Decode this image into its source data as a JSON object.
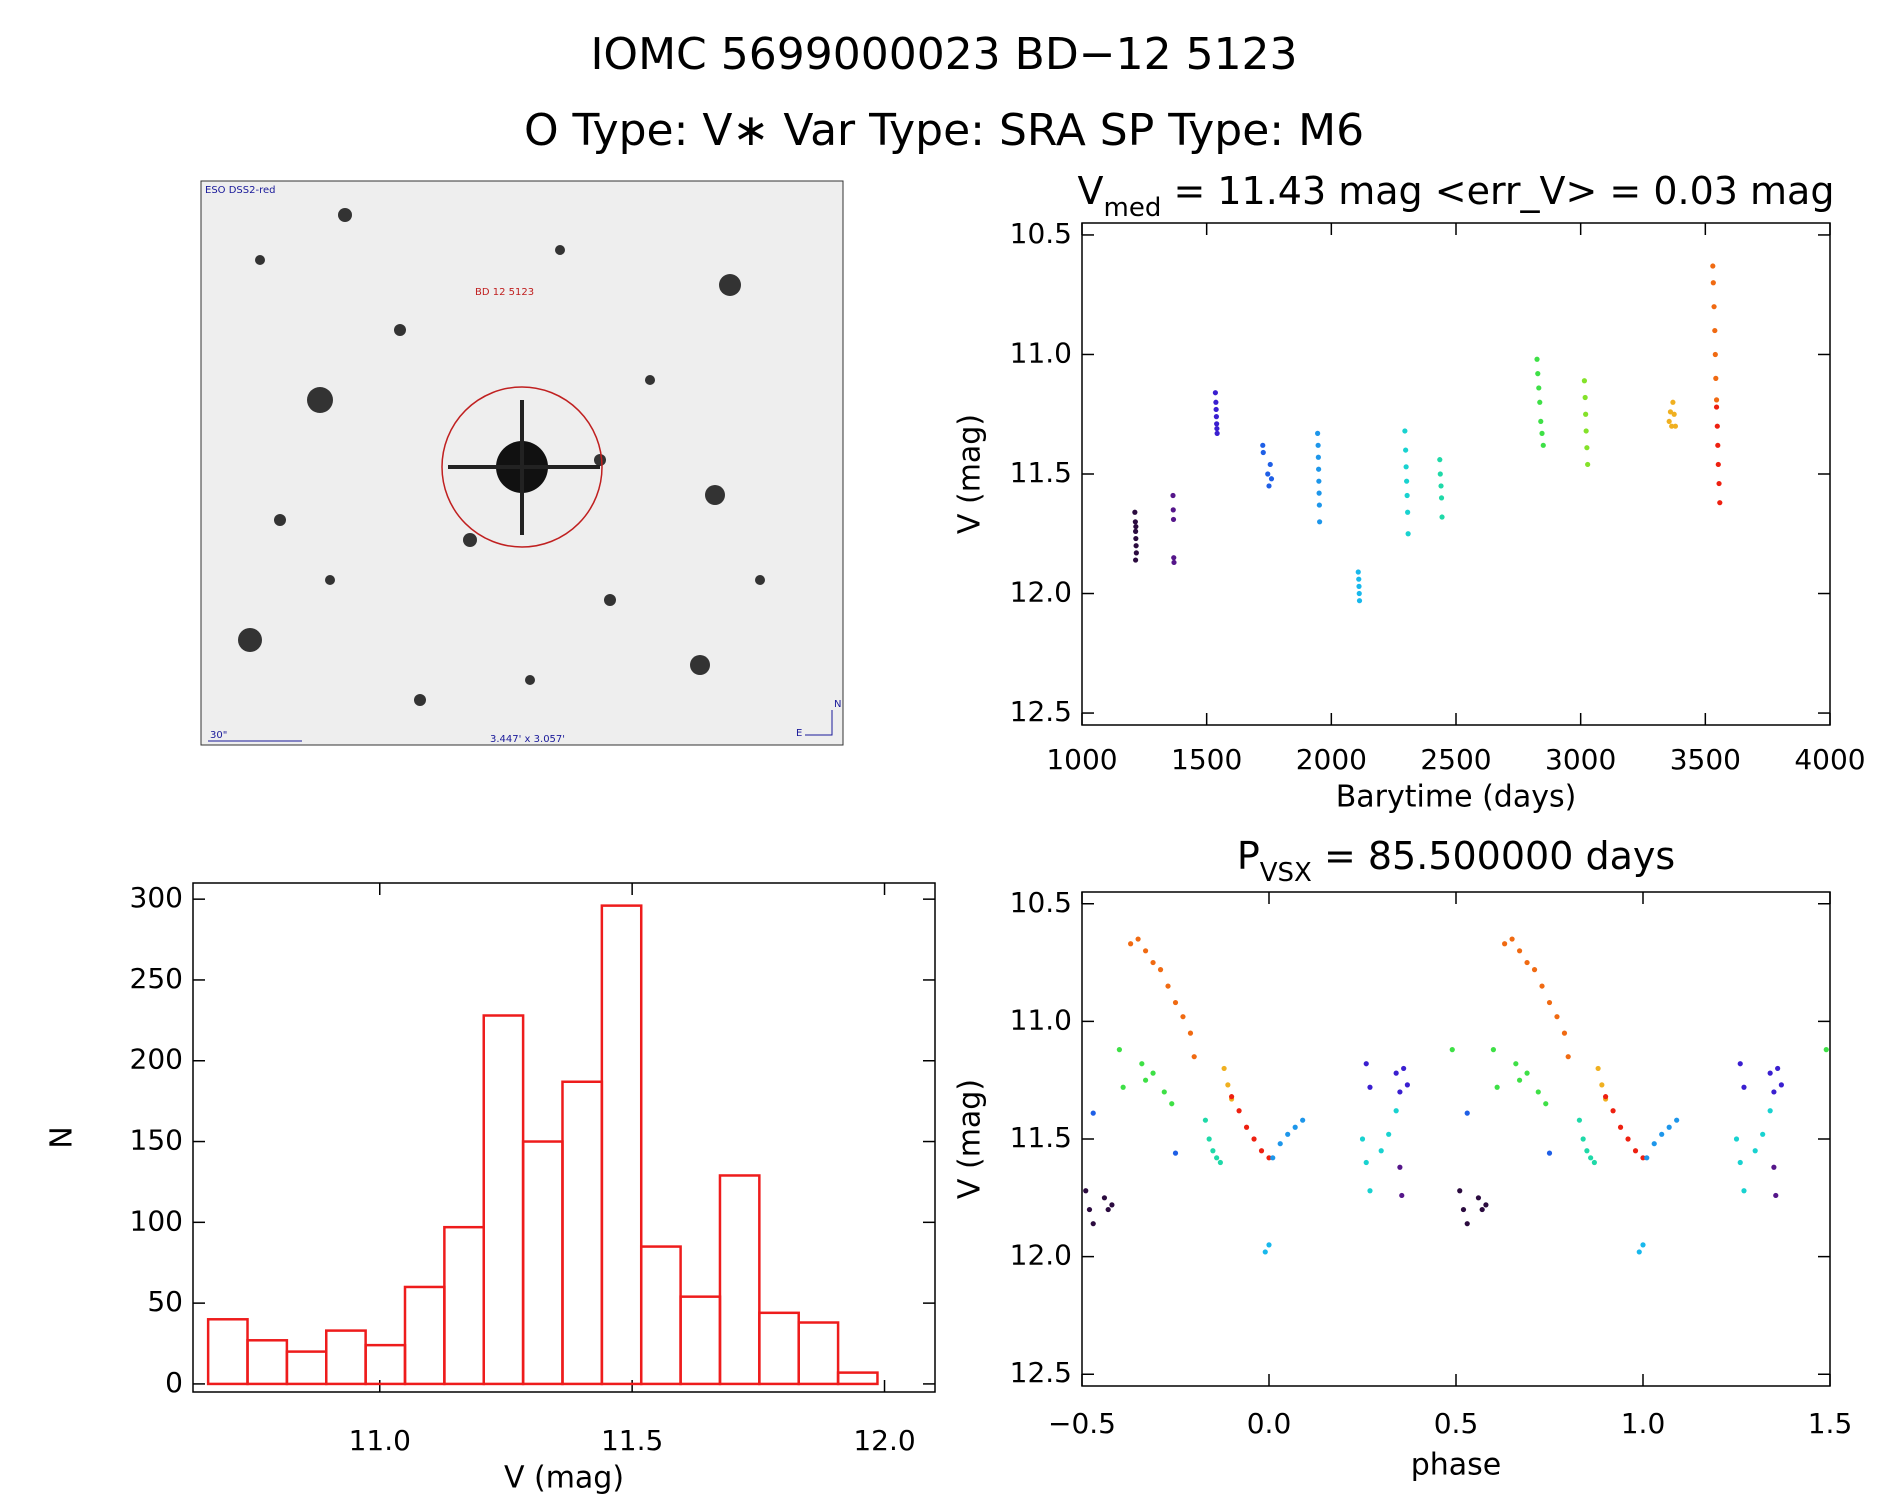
{
  "header": {
    "title": "IOMC 5699000023   BD−12  5123",
    "subtitle": "O Type: V∗  Var Type: SRA  SP Type: M6"
  },
  "image": {
    "survey": "ESO DSS2-red",
    "target": "BD 12 5123",
    "scale": "30\"",
    "field": "3.447' x 3.057'",
    "north": "N",
    "east": "E"
  },
  "chart_data": [
    {
      "type": "scatter",
      "title": [
        "V",
        "med",
        " = 11.43 mag <err_V> = 0.03 mag"
      ],
      "x_label": "Barytime (days)",
      "y_label": "V (mag)",
      "xlim": [
        1000,
        4000
      ],
      "ylim": [
        12.55,
        10.45
      ],
      "xticks": [
        1000,
        1500,
        2000,
        2500,
        3000,
        3500,
        4000
      ],
      "yticks": [
        10.5,
        {
          "value": 11,
          "label": "11.0"
        },
        11.5,
        {
          "value": 12,
          "label": "12.0"
        },
        12.5
      ],
      "series": [
        {
          "color": "#2b0b3f",
          "x": [
            1212,
            1214,
            1215,
            1216,
            1217,
            1218,
            1215,
            1216
          ],
          "values": [
            11.66,
            11.7,
            11.74,
            11.77,
            11.8,
            11.83,
            11.86,
            11.72
          ]
        },
        {
          "color": "#55168a",
          "x": [
            1365,
            1366,
            1367,
            1368,
            1369
          ],
          "values": [
            11.59,
            11.65,
            11.69,
            11.85,
            11.87
          ]
        },
        {
          "color": "#3a1fd0",
          "x": [
            1535,
            1537,
            1538,
            1539,
            1540,
            1541,
            1542
          ],
          "values": [
            11.16,
            11.2,
            11.23,
            11.26,
            11.29,
            11.31,
            11.33
          ]
        },
        {
          "color": "#1f5fe6",
          "x": [
            1725,
            1727,
            1745,
            1750,
            1755,
            1760
          ],
          "values": [
            11.38,
            11.41,
            11.5,
            11.55,
            11.46,
            11.52
          ]
        },
        {
          "color": "#1d96ea",
          "x": [
            1945,
            1947,
            1948,
            1949,
            1950,
            1951,
            1952,
            1953
          ],
          "values": [
            11.33,
            11.38,
            11.43,
            11.48,
            11.53,
            11.58,
            11.63,
            11.7
          ]
        },
        {
          "color": "#18b8ec",
          "x": [
            2108,
            2110,
            2111,
            2112,
            2113
          ],
          "values": [
            11.91,
            11.94,
            11.97,
            12.0,
            12.03
          ]
        },
        {
          "color": "#19d2d0",
          "x": [
            2295,
            2298,
            2300,
            2302,
            2304,
            2306,
            2308
          ],
          "values": [
            11.32,
            11.4,
            11.47,
            11.53,
            11.59,
            11.66,
            11.75
          ]
        },
        {
          "color": "#1fd9a8",
          "x": [
            2435,
            2437,
            2440,
            2442,
            2444
          ],
          "values": [
            11.44,
            11.5,
            11.55,
            11.6,
            11.68
          ]
        },
        {
          "color": "#3ee046",
          "x": [
            2825,
            2828,
            2832,
            2836,
            2840,
            2845,
            2850
          ],
          "values": [
            11.02,
            11.08,
            11.14,
            11.2,
            11.28,
            11.33,
            11.38
          ]
        },
        {
          "color": "#84e22a",
          "x": [
            3015,
            3018,
            3020,
            3022,
            3025,
            3028
          ],
          "values": [
            11.11,
            11.18,
            11.25,
            11.32,
            11.39,
            11.46
          ]
        },
        {
          "color": "#f0b020",
          "x": [
            3355,
            3360,
            3365,
            3370,
            3375,
            3380
          ],
          "values": [
            11.28,
            11.24,
            11.3,
            11.2,
            11.25,
            11.3
          ]
        },
        {
          "color": "#f06a12",
          "x": [
            3530,
            3532,
            3535,
            3538,
            3540,
            3542,
            3545
          ],
          "values": [
            10.63,
            10.7,
            10.8,
            10.9,
            11.0,
            11.1,
            11.19
          ]
        },
        {
          "color": "#ee2010",
          "x": [
            3545,
            3548,
            3550,
            3552,
            3555,
            3558
          ],
          "values": [
            11.22,
            11.3,
            11.38,
            11.46,
            11.54,
            11.62
          ]
        }
      ]
    },
    {
      "type": "histogram",
      "x_label": "V (mag)",
      "y_label": "N",
      "color": "#ee1c1c",
      "xlim": [
        10.63,
        12.1
      ],
      "ylim": [
        -5,
        310
      ],
      "xticks": [
        {
          "value": 11,
          "label": "11.0"
        },
        11.5,
        {
          "value": 12,
          "label": "12.0"
        }
      ],
      "yticks": [
        0,
        50,
        100,
        150,
        200,
        250,
        300
      ],
      "bins": [
        10.66,
        10.738,
        10.816,
        10.894,
        10.972,
        11.05,
        11.128,
        11.206,
        11.284,
        11.362,
        11.44,
        11.518,
        11.596,
        11.674,
        11.752,
        11.83,
        11.908,
        11.986
      ],
      "values": [
        40,
        27,
        20,
        33,
        24,
        60,
        97,
        228,
        150,
        187,
        296,
        85,
        54,
        129,
        44,
        38,
        7
      ]
    },
    {
      "type": "scatter",
      "title": [
        "P",
        "VSX",
        " = 85.500000 days"
      ],
      "x_label": "phase",
      "y_label": "V (mag)",
      "xlim": [
        -0.5,
        1.5
      ],
      "ylim": [
        12.55,
        10.45
      ],
      "xticks": [
        {
          "value": -0.5,
          "label": "−0.5"
        },
        {
          "value": 0,
          "label": "0.0"
        },
        0.5,
        {
          "value": 1,
          "label": "1.0"
        },
        1.5
      ],
      "yticks": [
        10.5,
        {
          "value": 11,
          "label": "11.0"
        },
        11.5,
        {
          "value": 12,
          "label": "12.0"
        },
        12.5
      ],
      "series": [
        {
          "color": "#2b0b3f",
          "x": [
            -0.49,
            -0.48,
            -0.47,
            -0.44,
            -0.43,
            -0.42,
            0.51,
            0.52,
            0.53,
            0.56,
            0.57,
            0.58
          ],
          "values": [
            11.72,
            11.8,
            11.86,
            11.75,
            11.8,
            11.78,
            11.72,
            11.8,
            11.86,
            11.75,
            11.8,
            11.78
          ]
        },
        {
          "color": "#f06a12",
          "x": [
            -0.37,
            -0.35,
            -0.33,
            -0.31,
            -0.29,
            -0.27,
            -0.25,
            -0.23,
            -0.21,
            -0.2,
            0.63,
            0.65,
            0.67,
            0.69,
            0.71,
            0.73,
            0.75,
            0.77,
            0.79,
            0.8
          ],
          "values": [
            10.67,
            10.65,
            10.7,
            10.75,
            10.78,
            10.85,
            10.92,
            10.98,
            11.05,
            11.15,
            10.67,
            10.65,
            10.7,
            10.75,
            10.78,
            10.85,
            10.92,
            10.98,
            11.05,
            11.15
          ]
        },
        {
          "color": "#3ee046",
          "x": [
            -0.4,
            -0.39,
            -0.34,
            -0.33,
            -0.31,
            -0.28,
            -0.26,
            0.49,
            0.6,
            0.61,
            0.66,
            0.67,
            0.69,
            0.72,
            0.74,
            1.49
          ],
          "values": [
            11.12,
            11.28,
            11.18,
            11.25,
            11.22,
            11.3,
            11.35,
            11.12,
            11.12,
            11.28,
            11.18,
            11.25,
            11.22,
            11.3,
            11.35,
            11.12
          ]
        },
        {
          "color": "#1fd9a8",
          "x": [
            -0.17,
            -0.16,
            -0.15,
            -0.14,
            -0.13,
            0.83,
            0.84,
            0.85,
            0.86,
            0.87
          ],
          "values": [
            11.42,
            11.5,
            11.55,
            11.58,
            11.6,
            11.42,
            11.5,
            11.55,
            11.58,
            11.6
          ]
        },
        {
          "color": "#f0b020",
          "x": [
            -0.12,
            -0.11,
            -0.1,
            0.88,
            0.89,
            0.9
          ],
          "values": [
            11.2,
            11.27,
            11.33,
            11.2,
            11.27,
            11.33
          ]
        },
        {
          "color": "#ee2010",
          "x": [
            -0.1,
            -0.08,
            -0.06,
            -0.04,
            -0.02,
            0.0,
            0.9,
            0.92,
            0.94,
            0.96,
            0.98,
            1.0
          ],
          "values": [
            11.32,
            11.38,
            11.45,
            11.5,
            11.55,
            11.58,
            11.32,
            11.38,
            11.45,
            11.5,
            11.55,
            11.58
          ]
        },
        {
          "color": "#1d96ea",
          "x": [
            0.01,
            0.03,
            0.05,
            0.07,
            0.09,
            1.01,
            1.03,
            1.05,
            1.07,
            1.09
          ],
          "values": [
            11.58,
            11.52,
            11.48,
            11.45,
            11.42,
            11.58,
            11.52,
            11.48,
            11.45,
            11.42
          ]
        },
        {
          "color": "#18b8ec",
          "x": [
            -0.01,
            0.0,
            0.99,
            1.0
          ],
          "values": [
            11.98,
            11.95,
            11.98,
            11.95
          ]
        },
        {
          "color": "#1f5fe6",
          "x": [
            -0.47,
            -0.25,
            0.53,
            0.75
          ],
          "values": [
            11.39,
            11.56,
            11.39,
            11.56
          ]
        },
        {
          "color": "#19d2d0",
          "x": [
            0.25,
            0.26,
            0.27,
            0.3,
            0.32,
            0.34,
            1.25,
            1.26,
            1.27,
            1.3,
            1.32,
            1.34
          ],
          "values": [
            11.5,
            11.6,
            11.72,
            11.55,
            11.48,
            11.38,
            11.5,
            11.6,
            11.72,
            11.55,
            11.48,
            11.38
          ]
        },
        {
          "color": "#3a1fd0",
          "x": [
            0.26,
            0.27,
            0.34,
            0.35,
            0.36,
            0.37,
            1.26,
            1.27,
            1.34,
            1.35,
            1.36,
            1.37
          ],
          "values": [
            11.18,
            11.28,
            11.22,
            11.3,
            11.2,
            11.27,
            11.18,
            11.28,
            11.22,
            11.3,
            11.2,
            11.27
          ]
        },
        {
          "color": "#55168a",
          "x": [
            0.35,
            0.355,
            1.35,
            1.355
          ],
          "values": [
            11.62,
            11.74,
            11.62,
            11.74
          ]
        }
      ]
    }
  ]
}
